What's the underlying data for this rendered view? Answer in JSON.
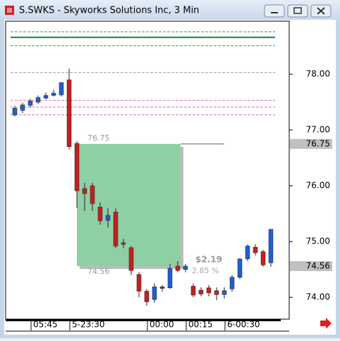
{
  "window_title": "S.SWKS - Skyworks Solutions Inc, 3 Min",
  "chart_data": {
    "type": "candlestick",
    "categories": [
      null,
      null,
      "05:45",
      null,
      null,
      null,
      null,
      "5-23:30",
      null,
      null,
      null,
      null,
      null,
      null,
      null,
      null,
      null,
      "00:00",
      null,
      null,
      null,
      null,
      "00:15",
      null,
      null,
      null,
      null,
      "6-00:30",
      null,
      null,
      null,
      null,
      null,
      null
    ],
    "open": [
      77.27,
      77.35,
      77.44,
      77.5,
      77.57,
      77.62,
      77.63,
      77.9,
      76.76,
      75.95,
      76.0,
      75.62,
      75.38,
      75.53,
      74.98,
      74.89,
      74.41,
      74.11,
      73.96,
      74.19,
      74.17,
      74.56,
      74.5,
      74.2,
      74.13,
      74.17,
      74.12,
      74.05,
      74.15,
      74.36,
      74.69,
      74.9,
      74.82,
      74.62
    ],
    "high": [
      77.43,
      77.49,
      77.56,
      77.62,
      77.67,
      77.72,
      77.85,
      78.1,
      76.8,
      76.05,
      76.05,
      75.7,
      75.6,
      75.6,
      75.05,
      74.92,
      74.45,
      74.15,
      74.25,
      74.22,
      74.6,
      74.65,
      74.6,
      74.25,
      74.18,
      74.22,
      74.18,
      74.18,
      74.4,
      74.7,
      74.95,
      74.95,
      74.85,
      75.22
    ],
    "low": [
      77.24,
      77.3,
      77.4,
      77.47,
      77.55,
      77.6,
      77.6,
      76.65,
      75.6,
      75.55,
      75.55,
      75.3,
      75.25,
      74.88,
      74.88,
      74.4,
      74.0,
      73.85,
      73.9,
      74.1,
      74.15,
      74.45,
      74.45,
      74.0,
      74.02,
      74.02,
      73.95,
      73.98,
      74.1,
      74.33,
      74.65,
      74.75,
      74.55,
      74.55
    ],
    "close": [
      77.39,
      77.45,
      77.52,
      77.58,
      77.62,
      77.66,
      77.85,
      76.7,
      75.91,
      75.86,
      75.68,
      75.37,
      75.47,
      74.92,
      74.95,
      74.48,
      74.11,
      73.92,
      74.19,
      74.16,
      74.52,
      74.48,
      74.56,
      74.04,
      74.06,
      74.08,
      74.05,
      74.12,
      74.36,
      74.69,
      74.92,
      74.8,
      74.58,
      75.22
    ],
    "up_color": "#1f5fd0",
    "down_color": "#c81e1e",
    "ylim": [
      73.61,
      78.95
    ],
    "yticks": [
      {
        "value": 74,
        "label": "74.00"
      },
      {
        "value": 75,
        "label": "75.00"
      },
      {
        "value": 76,
        "label": "76.00"
      },
      {
        "value": 77,
        "label": "77.00"
      },
      {
        "value": 78,
        "label": "78.00"
      }
    ],
    "levels": [
      {
        "value": 78.76,
        "color": "#2aa050"
      },
      {
        "value": 78.66,
        "color": "#138a3c"
      },
      {
        "value": 78.51,
        "color": "#2aa050"
      },
      {
        "value": 78.03,
        "color": "#999999"
      },
      {
        "value": 77.53,
        "color": "#e070b0"
      },
      {
        "value": 77.41,
        "color": "#e070b0"
      },
      {
        "value": 77.27,
        "color": "#e070b0"
      }
    ],
    "measure": {
      "top": 76.75,
      "bottom": 74.56,
      "top_label": "76.75",
      "bottom_label": "74.56",
      "change_label": "$2.19",
      "percent_label": "2.85 %",
      "color": "#8fcfa6"
    },
    "price_markers": [
      {
        "value": 76.75,
        "label": "76.75"
      },
      {
        "value": 74.56,
        "label": "74.56"
      }
    ]
  }
}
